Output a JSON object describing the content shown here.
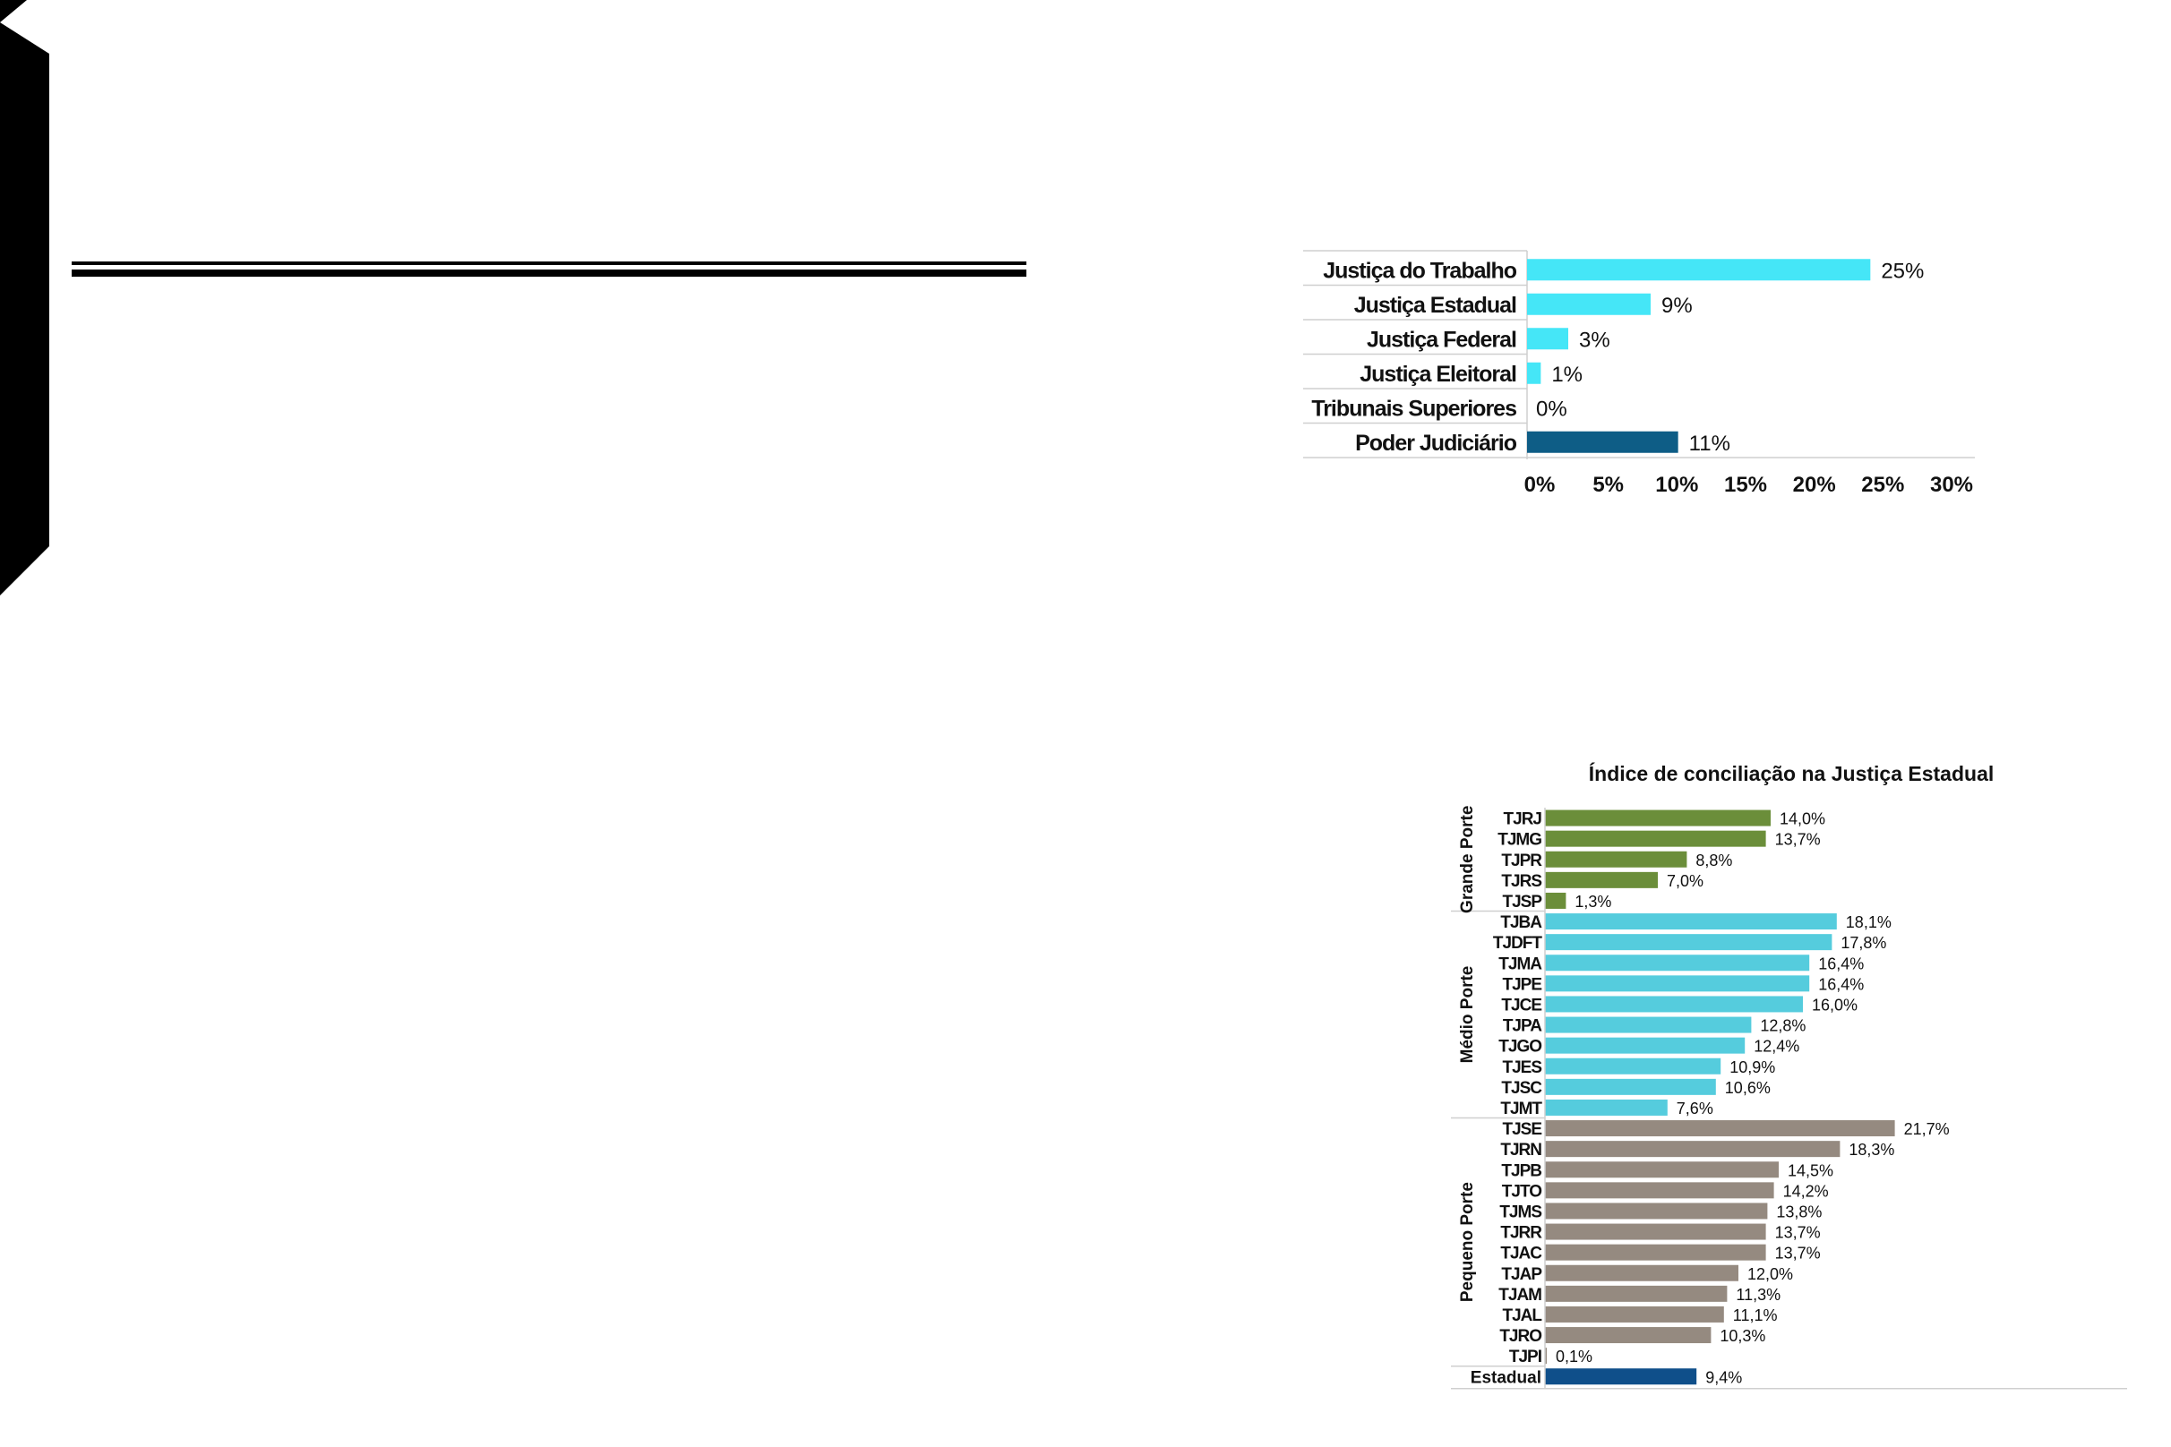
{
  "colors": {
    "tab": "#000000",
    "cyan_bar": "#45e6f7",
    "dark_blue": "#0e5d86",
    "green": "#6b8e3a",
    "teal": "#55ccdd",
    "gray": "#958a80",
    "estadual_blue": "#0f4f8a"
  },
  "chart_data": [
    {
      "type": "bar",
      "orientation": "horizontal",
      "title": "",
      "categories": [
        "Justiça do Trabalho",
        "Justiça Estadual",
        "Justiça Federal",
        "Justiça Eleitoral",
        "Tribunais Superiores",
        "Poder Judiciário"
      ],
      "values": [
        25,
        9,
        3,
        1,
        0,
        11
      ],
      "value_labels": [
        "25%",
        "9%",
        "3%",
        "1%",
        "0%",
        "11%"
      ],
      "highlight": "Poder Judiciário",
      "xlim": [
        0,
        30
      ],
      "xticks": [
        "0%",
        "5%",
        "10%",
        "15%",
        "20%",
        "25%",
        "30%"
      ],
      "grid": false
    },
    {
      "type": "bar",
      "orientation": "horizontal",
      "title": "Índice de conciliação na Justiça Estadual",
      "groups": [
        {
          "name": "Grande Porte",
          "color": "#6b8e3a",
          "categories": [
            "TJRJ",
            "TJMG",
            "TJPR",
            "TJRS",
            "TJSP"
          ],
          "values": [
            14.0,
            13.7,
            8.8,
            7.0,
            1.3
          ],
          "value_labels": [
            "14,0%",
            "13,7%",
            "8,8%",
            "7,0%",
            "1,3%"
          ]
        },
        {
          "name": "Médio Porte",
          "color": "#55ccdd",
          "categories": [
            "TJBA",
            "TJDFT",
            "TJMA",
            "TJPE",
            "TJCE",
            "TJPA",
            "TJGO",
            "TJES",
            "TJSC",
            "TJMT"
          ],
          "values": [
            18.1,
            17.8,
            16.4,
            16.4,
            16.0,
            12.8,
            12.4,
            10.9,
            10.6,
            7.6
          ],
          "value_labels": [
            "18,1%",
            "17,8%",
            "16,4%",
            "16,4%",
            "16,0%",
            "12,8%",
            "12,4%",
            "10,9%",
            "10,6%",
            "7,6%"
          ]
        },
        {
          "name": "Pequeno Porte",
          "color": "#958a80",
          "categories": [
            "TJSE",
            "TJRN",
            "TJPB",
            "TJTO",
            "TJMS",
            "TJRR",
            "TJAC",
            "TJAP",
            "TJAM",
            "TJAL",
            "TJRO",
            "TJPI"
          ],
          "values": [
            21.7,
            18.3,
            14.5,
            14.2,
            13.8,
            13.7,
            13.7,
            12.0,
            11.3,
            11.1,
            10.3,
            0.1
          ],
          "value_labels": [
            "21,7%",
            "18,3%",
            "14,5%",
            "14,2%",
            "13,8%",
            "13,7%",
            "13,7%",
            "12,0%",
            "11,3%",
            "11,1%",
            "10,3%",
            "0,1%"
          ]
        }
      ],
      "total": {
        "category": "Estadual",
        "value": 9.4,
        "value_label": "9,4%",
        "color": "#0f4f8a"
      },
      "xlim": [
        0,
        25
      ],
      "grid": false
    }
  ]
}
